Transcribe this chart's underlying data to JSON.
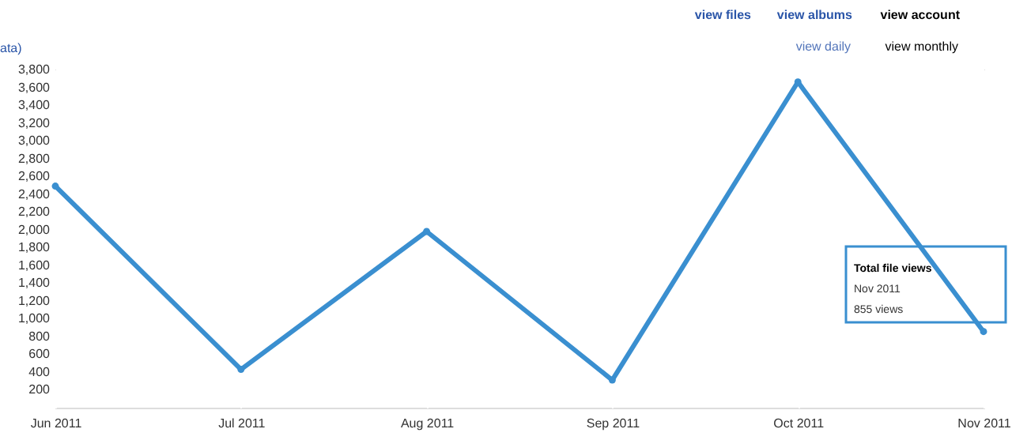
{
  "chart_data": {
    "type": "line",
    "categories": [
      "Jun 2011",
      "Jul 2011",
      "Aug 2011",
      "Sep 2011",
      "Oct 2011",
      "Nov 2011"
    ],
    "series": [
      {
        "color": "#3a8fd0",
        "values": [
          2490,
          430,
          1980,
          310,
          3660,
          855
        ]
      }
    ],
    "ylim": [
      0,
      3800
    ],
    "yticks": [
      200,
      400,
      600,
      800,
      {
        "value": 1000,
        "label": "1,000"
      },
      {
        "value": 1200,
        "label": "1,200"
      },
      {
        "value": 1400,
        "label": "1,400"
      },
      {
        "value": 1600,
        "label": "1,600"
      },
      {
        "value": 1800,
        "label": "1,800"
      },
      {
        "value": 2000,
        "label": "2,000"
      },
      {
        "value": 2200,
        "label": "2,200"
      },
      {
        "value": 2400,
        "label": "2,400"
      },
      {
        "value": 2600,
        "label": "2,600"
      },
      {
        "value": 2800,
        "label": "2,800"
      },
      {
        "value": 3000,
        "label": "3,000"
      },
      {
        "value": 3200,
        "label": "3,200"
      },
      {
        "value": 3400,
        "label": "3,400"
      },
      {
        "value": 3600,
        "label": "3,600"
      },
      {
        "value": 3800,
        "label": "3,800"
      }
    ],
    "grid": true,
    "marker": "circle",
    "line_style": "solid",
    "annotations": [
      "view files",
      "view albums",
      "view account",
      "ata)",
      "view daily",
      "view monthly",
      "Total file views",
      "Nov 2011",
      "855 views"
    ]
  }
}
